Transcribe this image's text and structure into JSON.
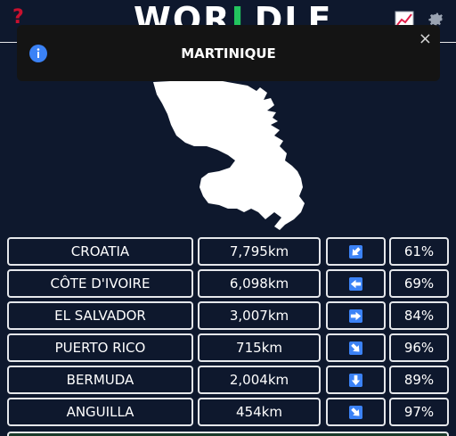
{
  "header": {
    "help_icon": "question-mark-icon",
    "logo_left": "WOR",
    "logo_mid": "L",
    "logo_right": "DLE",
    "stats_icon": "stats-icon",
    "settings_icon": "gear-icon"
  },
  "toast": {
    "icon": "info-icon",
    "title": "MARTINIQUE",
    "close": "×"
  },
  "guesses": [
    {
      "country": "CROATIA",
      "distance": "7,795km",
      "direction": "southwest",
      "proximity": "61%"
    },
    {
      "country": "CÔTE D'IVOIRE",
      "distance": "6,098km",
      "direction": "west",
      "proximity": "69%"
    },
    {
      "country": "EL SALVADOR",
      "distance": "3,007km",
      "direction": "east",
      "proximity": "84%"
    },
    {
      "country": "PUERTO RICO",
      "distance": "715km",
      "direction": "southeast",
      "proximity": "96%"
    },
    {
      "country": "BERMUDA",
      "distance": "2,004km",
      "direction": "south",
      "proximity": "89%"
    },
    {
      "country": "ANGUILLA",
      "distance": "454km",
      "direction": "southeast",
      "proximity": "97%"
    }
  ],
  "colors": {
    "background": "#0e182d",
    "arrow_bg": "#3b82f6",
    "toast_bg": "#141414",
    "brand_red": "#c8102e",
    "brand_green": "#22c55e"
  }
}
